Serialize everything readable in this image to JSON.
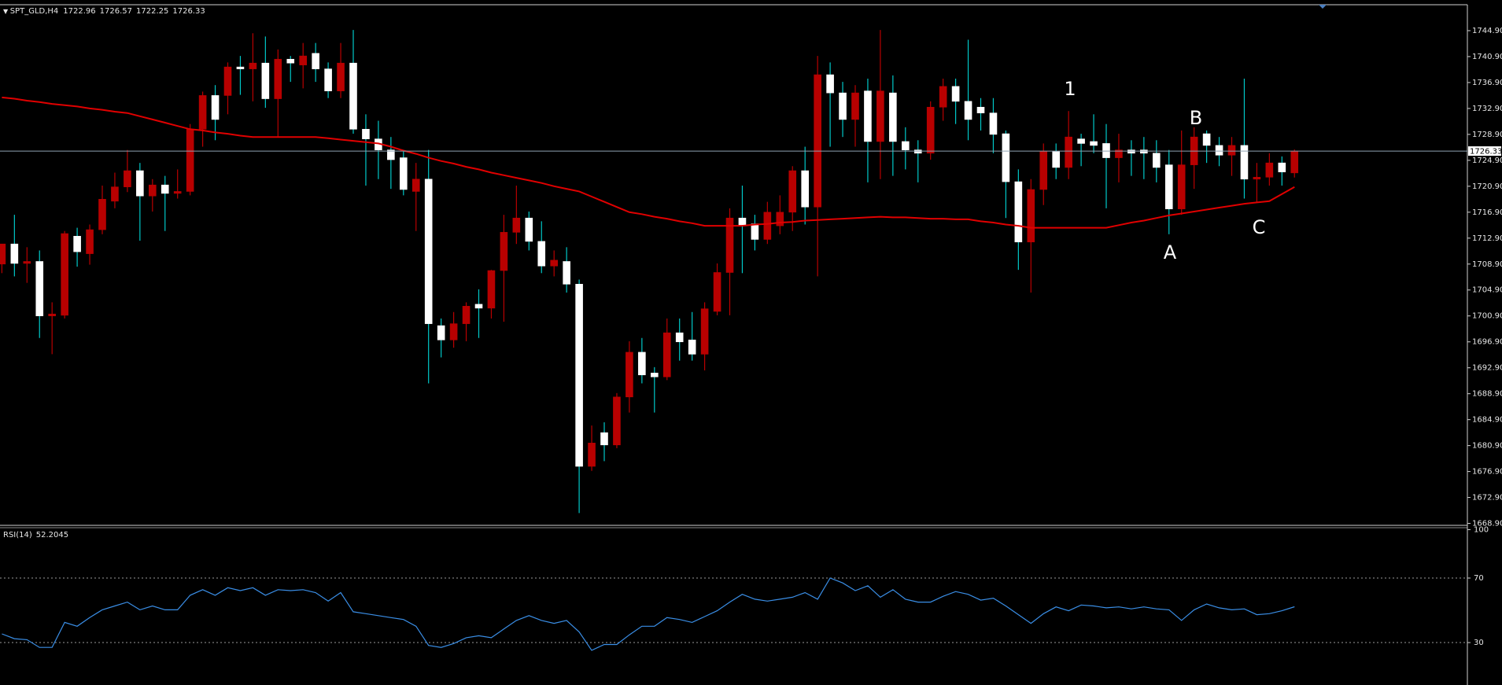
{
  "chart_data": [
    {
      "type": "candlestick",
      "symbol": "SPT_GLD,H4",
      "open": [
        1708.9,
        1712.0,
        1709.0,
        1709.3,
        1700.9,
        1701.0,
        1713.2,
        1710.5,
        1714.2,
        1718.6,
        1720.8,
        1723.3,
        1719.4,
        1721.1,
        1719.8,
        1720.1,
        1729.7,
        1734.9,
        1734.9,
        1739.3,
        1739.0,
        1739.9,
        1734.4,
        1740.5,
        1739.6,
        1741.4,
        1739.0,
        1735.6,
        1739.9,
        1729.7,
        1728.2,
        1726.5,
        1725.3,
        1720.1,
        1722.0,
        1699.4,
        1697.2,
        1699.7,
        1702.7,
        1702.1,
        1707.9,
        1713.8,
        1716.0,
        1712.4,
        1708.6,
        1709.3,
        1705.8,
        1677.7,
        1682.9,
        1681.0,
        1688.4,
        1695.3,
        1692.1,
        1691.5,
        1698.3,
        1697.2,
        1695.0,
        1701.6,
        1707.6,
        1716.0,
        1715.1,
        1712.7,
        1714.8,
        1716.9,
        1723.3,
        1717.7,
        1738.1,
        1735.3,
        1731.2,
        1735.6,
        1727.8,
        1735.3,
        1727.8,
        1726.5,
        1726.0,
        1733.1,
        1736.3,
        1734.0,
        1733.1,
        1732.2,
        1729.0,
        1721.6,
        1712.3,
        1720.4,
        1726.3,
        1723.8,
        1728.2,
        1727.8,
        1727.5,
        1725.3,
        1726.5,
        1726.5,
        1726.0,
        1724.2,
        1717.4,
        1724.2,
        1729.0,
        1727.2,
        1725.7,
        1727.2,
        1722.0,
        1722.3,
        1724.5,
        1722.96
      ],
      "high": [
        1712.0,
        1716.5,
        1711.5,
        1711.0,
        1703.0,
        1714.0,
        1714.5,
        1715.0,
        1721.0,
        1723.0,
        1726.5,
        1724.5,
        1722.0,
        1722.5,
        1723.5,
        1730.5,
        1735.5,
        1736.5,
        1740.0,
        1741.0,
        1744.5,
        1744.0,
        1742.0,
        1741.0,
        1743.0,
        1743.0,
        1740.0,
        1743.0,
        1745.0,
        1732.0,
        1731.0,
        1728.5,
        1726.5,
        1724.5,
        1726.5,
        1700.5,
        1701.5,
        1703.0,
        1705.0,
        1708.0,
        1716.5,
        1721.0,
        1717.0,
        1715.5,
        1711.0,
        1711.5,
        1706.5,
        1684.0,
        1684.5,
        1689.0,
        1697.0,
        1697.5,
        1693.0,
        1700.5,
        1700.5,
        1701.5,
        1703.0,
        1709.0,
        1717.5,
        1721.0,
        1716.5,
        1718.5,
        1719.5,
        1724.0,
        1727.0,
        1741.0,
        1740.0,
        1737.0,
        1736.5,
        1737.5,
        1745.0,
        1738.0,
        1730.0,
        1728.0,
        1734.0,
        1737.5,
        1737.5,
        1743.5,
        1734.5,
        1734.5,
        1729.5,
        1723.5,
        1722.0,
        1727.5,
        1727.5,
        1732.5,
        1729.0,
        1732.0,
        1730.5,
        1729.0,
        1728.0,
        1728.5,
        1728.0,
        1726.5,
        1729.5,
        1730.0,
        1729.5,
        1728.5,
        1728.5,
        1737.5,
        1724.5,
        1726.0,
        1725.5,
        1726.57
      ],
      "low": [
        1707.5,
        1707.0,
        1706.0,
        1697.5,
        1695.0,
        1700.5,
        1708.5,
        1708.8,
        1713.5,
        1717.5,
        1720.0,
        1712.5,
        1717.0,
        1714.0,
        1719.0,
        1719.5,
        1727.0,
        1728.0,
        1732.0,
        1735.0,
        1734.0,
        1733.0,
        1728.5,
        1737.0,
        1736.0,
        1737.0,
        1734.5,
        1734.5,
        1729.0,
        1721.0,
        1722.0,
        1720.5,
        1719.5,
        1714.0,
        1690.5,
        1694.5,
        1696.0,
        1697.0,
        1697.5,
        1700.5,
        1700.0,
        1712.0,
        1711.0,
        1707.5,
        1707.0,
        1704.5,
        1670.5,
        1677.0,
        1678.5,
        1680.5,
        1686.0,
        1690.5,
        1686.0,
        1691.0,
        1694.0,
        1694.0,
        1692.5,
        1701.0,
        1701.0,
        1707.5,
        1711.0,
        1712.0,
        1713.5,
        1714.0,
        1715.0,
        1707.0,
        1727.0,
        1728.5,
        1727.0,
        1721.5,
        1722.0,
        1722.5,
        1723.5,
        1721.5,
        1725.0,
        1731.0,
        1730.5,
        1728.0,
        1729.5,
        1726.0,
        1716.0,
        1708.0,
        1704.5,
        1718.0,
        1722.0,
        1722.0,
        1724.0,
        1726.0,
        1717.5,
        1721.5,
        1722.5,
        1722.0,
        1721.5,
        1713.5,
        1716.5,
        1720.5,
        1724.5,
        1724.0,
        1722.5,
        1719.0,
        1718.5,
        1721.0,
        1721.0,
        1722.25
      ],
      "close": [
        1712.0,
        1709.0,
        1709.3,
        1700.9,
        1701.2,
        1713.6,
        1710.8,
        1714.2,
        1718.9,
        1720.8,
        1723.3,
        1719.4,
        1721.1,
        1719.8,
        1720.1,
        1729.7,
        1734.9,
        1731.2,
        1739.3,
        1739.0,
        1739.9,
        1734.4,
        1740.5,
        1739.9,
        1741.0,
        1739.0,
        1735.6,
        1739.9,
        1729.7,
        1728.2,
        1726.5,
        1725.0,
        1720.4,
        1722.0,
        1699.7,
        1697.2,
        1699.7,
        1702.4,
        1702.1,
        1707.9,
        1713.8,
        1716.0,
        1712.4,
        1708.6,
        1709.5,
        1705.8,
        1677.7,
        1681.3,
        1681.0,
        1688.4,
        1695.3,
        1691.8,
        1691.5,
        1698.3,
        1696.9,
        1695.0,
        1702.0,
        1707.6,
        1716.0,
        1714.8,
        1712.7,
        1716.9,
        1716.9,
        1723.3,
        1717.7,
        1738.1,
        1735.3,
        1731.2,
        1735.3,
        1727.8,
        1735.6,
        1727.8,
        1726.5,
        1726.0,
        1733.1,
        1736.3,
        1734.0,
        1731.2,
        1732.2,
        1728.9,
        1721.6,
        1712.3,
        1720.4,
        1726.3,
        1723.8,
        1728.5,
        1727.5,
        1727.2,
        1725.3,
        1726.5,
        1726.0,
        1726.0,
        1723.8,
        1717.4,
        1724.2,
        1728.5,
        1727.2,
        1725.7,
        1727.2,
        1722.0,
        1722.3,
        1724.5,
        1723.1,
        1726.33
      ],
      "bull_color": "#b80000",
      "bear_color": "#ffffff",
      "bear_wick_color": "#00c8c8",
      "ma": {
        "color": "#e00000",
        "values": [
          1734.6,
          1734.4,
          1734.1,
          1733.9,
          1733.6,
          1733.4,
          1733.2,
          1732.9,
          1732.7,
          1732.4,
          1732.2,
          1731.7,
          1731.2,
          1730.7,
          1730.2,
          1729.7,
          1729.5,
          1729.2,
          1729.0,
          1728.7,
          1728.5,
          1728.5,
          1728.5,
          1728.5,
          1728.5,
          1728.5,
          1728.3,
          1728.1,
          1727.9,
          1727.7,
          1727.5,
          1727.0,
          1726.4,
          1725.9,
          1725.3,
          1724.8,
          1724.4,
          1723.9,
          1723.5,
          1723.0,
          1722.6,
          1722.2,
          1721.8,
          1721.4,
          1720.9,
          1720.5,
          1720.1,
          1719.3,
          1718.5,
          1717.7,
          1716.9,
          1716.6,
          1716.2,
          1715.9,
          1715.5,
          1715.2,
          1714.8,
          1714.8,
          1714.8,
          1714.8,
          1715.0,
          1715.1,
          1715.3,
          1715.4,
          1715.6,
          1715.7,
          1715.8,
          1715.9,
          1716.0,
          1716.1,
          1716.2,
          1716.1,
          1716.1,
          1716.0,
          1715.9,
          1715.9,
          1715.8,
          1715.8,
          1715.5,
          1715.3,
          1715.0,
          1714.8,
          1714.5,
          1714.5,
          1714.5,
          1714.5,
          1714.5,
          1714.5,
          1714.5,
          1714.9,
          1715.3,
          1715.6,
          1716.0,
          1716.4,
          1716.7,
          1717.0,
          1717.3,
          1717.6,
          1717.9,
          1718.2,
          1718.4,
          1718.6,
          1719.7,
          1720.8
        ]
      },
      "price_line_color": "#8fa3b3",
      "ylim": [
        1668.6,
        1748.9
      ],
      "yticks": [
        {
          "value": 1668.9,
          "label": "1668.90"
        },
        {
          "value": 1672.9,
          "label": "1672.90"
        },
        {
          "value": 1676.9,
          "label": "1676.90"
        },
        {
          "value": 1680.9,
          "label": "1680.90"
        },
        {
          "value": 1684.9,
          "label": "1684.90"
        },
        {
          "value": 1688.9,
          "label": "1688.90"
        },
        {
          "value": 1692.9,
          "label": "1692.90"
        },
        {
          "value": 1696.9,
          "label": "1696.90"
        },
        {
          "value": 1700.9,
          "label": "1700.90"
        },
        {
          "value": 1704.9,
          "label": "1704.90"
        },
        {
          "value": 1708.9,
          "label": "1708.90"
        },
        {
          "value": 1712.9,
          "label": "1712.90"
        },
        {
          "value": 1716.9,
          "label": "1716.90"
        },
        {
          "value": 1720.9,
          "label": "1720.90"
        },
        {
          "value": 1724.9,
          "label": "1724.90"
        },
        {
          "value": 1728.9,
          "label": "1728.90"
        },
        {
          "value": 1732.9,
          "label": "1732.90"
        },
        {
          "value": 1736.9,
          "label": "1736.90"
        },
        {
          "value": 1740.9,
          "label": "1740.90"
        },
        {
          "value": 1744.9,
          "label": "1744.90"
        }
      ],
      "annotations": [
        "1",
        "A",
        "B",
        "C"
      ]
    },
    {
      "type": "line",
      "title": "RSI(14)",
      "color": "#3a8ee6",
      "values": [
        35.4,
        32.4,
        31.8,
        27.0,
        27.0,
        42.5,
        40.1,
        45.5,
        50.3,
        52.7,
        55.1,
        50.3,
        52.7,
        50.3,
        50.3,
        59.3,
        62.8,
        59.3,
        64.0,
        62.2,
        64.0,
        59.3,
        62.8,
        62.2,
        62.8,
        61.0,
        55.7,
        61.0,
        49.1,
        47.9,
        46.7,
        45.5,
        44.3,
        40.1,
        28.2,
        27.0,
        29.4,
        33.0,
        34.2,
        33.0,
        38.4,
        43.7,
        46.7,
        43.7,
        41.9,
        43.7,
        36.6,
        25.2,
        28.8,
        28.8,
        34.8,
        40.1,
        40.1,
        45.5,
        44.3,
        42.5,
        46.1,
        49.7,
        55.1,
        59.9,
        56.9,
        55.7,
        56.9,
        58.1,
        61.0,
        56.9,
        70.0,
        67.0,
        62.2,
        65.2,
        58.1,
        62.8,
        56.9,
        55.1,
        55.1,
        58.7,
        61.6,
        59.9,
        56.3,
        57.5,
        52.7,
        47.3,
        41.9,
        47.9,
        52.1,
        49.7,
        53.3,
        52.7,
        51.5,
        52.1,
        50.9,
        52.1,
        50.9,
        50.3,
        43.7,
        50.3,
        53.9,
        51.5,
        50.3,
        50.9,
        47.3,
        47.9,
        49.7,
        52.2045
      ],
      "ylim": [
        3.7,
        101.2
      ],
      "yticks": [
        100,
        70,
        30
      ],
      "levels": [
        70,
        30
      ]
    }
  ]
}
